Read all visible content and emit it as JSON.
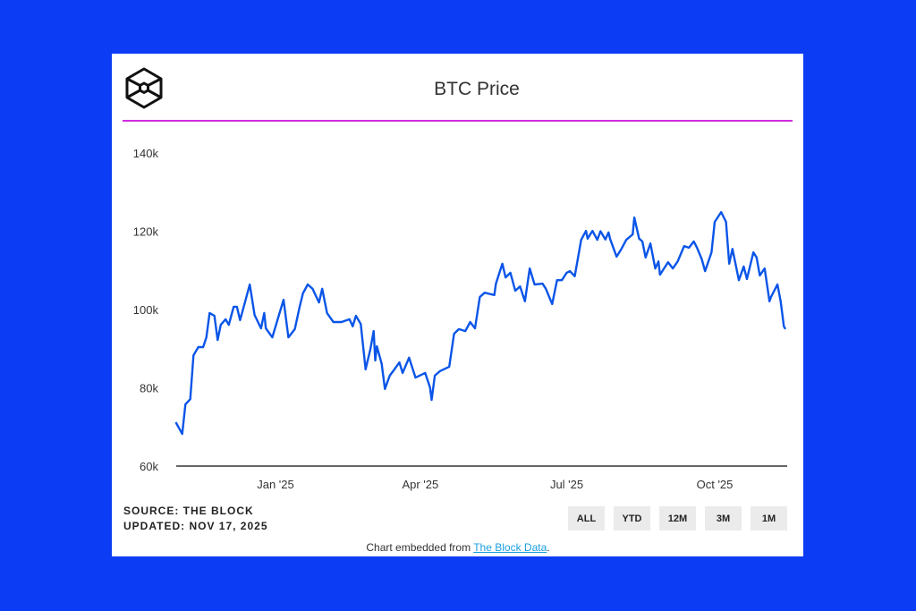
{
  "header": {
    "title": "BTC Price",
    "logo": "The Block"
  },
  "colors": {
    "background": "#0c3cf4",
    "line": "#0a55e8",
    "rule": "#d22be0",
    "button_bg": "#ebebeb",
    "link": "#1a9fe0"
  },
  "footer": {
    "source": "SOURCE: THE BLOCK",
    "updated": "UPDATED: NOV 17, 2025",
    "embed_prefix": "Chart embedded from ",
    "embed_link": "The Block Data",
    "embed_suffix": "."
  },
  "range_buttons": [
    {
      "label": "ALL"
    },
    {
      "label": "YTD"
    },
    {
      "label": "12M"
    },
    {
      "label": "3M"
    },
    {
      "label": "1M"
    }
  ],
  "chart_data": {
    "type": "line",
    "title": "BTC Price",
    "xlabel": "",
    "ylabel": "",
    "ylim": [
      60000,
      140000
    ],
    "yticks": [
      {
        "value": 60000,
        "label": "60k"
      },
      {
        "value": 80000,
        "label": "80k"
      },
      {
        "value": 100000,
        "label": "100k"
      },
      {
        "value": 120000,
        "label": "120k"
      },
      {
        "value": 140000,
        "label": "140k"
      }
    ],
    "xticks": [
      {
        "date": "2025-01-01",
        "label": "Jan '25"
      },
      {
        "date": "2025-04-01",
        "label": "Apr '25"
      },
      {
        "date": "2025-07-01",
        "label": "Jul '25"
      },
      {
        "date": "2025-10-01",
        "label": "Oct '25"
      }
    ],
    "grid": false,
    "series": [
      {
        "values": [
          [
            "2024-10-31",
            71200
          ],
          [
            "2024-11-04",
            68200
          ],
          [
            "2024-11-06",
            75800
          ],
          [
            "2024-11-09",
            77100
          ],
          [
            "2024-11-11",
            88300
          ],
          [
            "2024-11-14",
            90400
          ],
          [
            "2024-11-17",
            90400
          ],
          [
            "2024-11-19",
            92900
          ],
          [
            "2024-11-21",
            99100
          ],
          [
            "2024-11-24",
            98400
          ],
          [
            "2024-11-26",
            92200
          ],
          [
            "2024-11-28",
            96100
          ],
          [
            "2024-12-01",
            97500
          ],
          [
            "2024-12-03",
            96100
          ],
          [
            "2024-12-06",
            100700
          ],
          [
            "2024-12-08",
            100700
          ],
          [
            "2024-12-10",
            97300
          ],
          [
            "2024-12-13",
            101800
          ],
          [
            "2024-12-16",
            106400
          ],
          [
            "2024-12-19",
            98600
          ],
          [
            "2024-12-23",
            95200
          ],
          [
            "2024-12-25",
            99100
          ],
          [
            "2024-12-26",
            95200
          ],
          [
            "2024-12-30",
            92900
          ],
          [
            "2025-01-03",
            98400
          ],
          [
            "2025-01-06",
            102500
          ],
          [
            "2025-01-09",
            92900
          ],
          [
            "2025-01-13",
            95000
          ],
          [
            "2025-01-16",
            100700
          ],
          [
            "2025-01-18",
            104100
          ],
          [
            "2025-01-21",
            106400
          ],
          [
            "2025-01-24",
            105300
          ],
          [
            "2025-01-28",
            101800
          ],
          [
            "2025-01-30",
            105300
          ],
          [
            "2025-02-02",
            99100
          ],
          [
            "2025-02-06",
            96800
          ],
          [
            "2025-02-11",
            96800
          ],
          [
            "2025-02-16",
            97500
          ],
          [
            "2025-02-18",
            95700
          ],
          [
            "2025-02-20",
            98400
          ],
          [
            "2025-02-23",
            96300
          ],
          [
            "2025-02-26",
            84700
          ],
          [
            "2025-03-01",
            89900
          ],
          [
            "2025-03-03",
            94500
          ],
          [
            "2025-03-04",
            87000
          ],
          [
            "2025-03-05",
            90600
          ],
          [
            "2025-03-08",
            86100
          ],
          [
            "2025-03-10",
            79700
          ],
          [
            "2025-03-13",
            83100
          ],
          [
            "2025-03-15",
            84200
          ],
          [
            "2025-03-19",
            86500
          ],
          [
            "2025-03-21",
            83800
          ],
          [
            "2025-03-25",
            87700
          ],
          [
            "2025-03-29",
            82600
          ],
          [
            "2025-04-04",
            83800
          ],
          [
            "2025-04-07",
            80100
          ],
          [
            "2025-04-08",
            76900
          ],
          [
            "2025-04-10",
            83100
          ],
          [
            "2025-04-13",
            84200
          ],
          [
            "2025-04-19",
            85400
          ],
          [
            "2025-04-22",
            93800
          ],
          [
            "2025-04-25",
            95000
          ],
          [
            "2025-04-29",
            94500
          ],
          [
            "2025-05-02",
            96800
          ],
          [
            "2025-05-05",
            95200
          ],
          [
            "2025-05-08",
            103200
          ],
          [
            "2025-05-11",
            104300
          ],
          [
            "2025-05-17",
            103700
          ],
          [
            "2025-05-18",
            106600
          ],
          [
            "2025-05-22",
            111700
          ],
          [
            "2025-05-24",
            108200
          ],
          [
            "2025-05-27",
            109400
          ],
          [
            "2025-05-30",
            104800
          ],
          [
            "2025-06-02",
            105900
          ],
          [
            "2025-06-05",
            102100
          ],
          [
            "2025-06-08",
            110500
          ],
          [
            "2025-06-11",
            106400
          ],
          [
            "2025-06-16",
            106600
          ],
          [
            "2025-06-18",
            105300
          ],
          [
            "2025-06-22",
            101400
          ],
          [
            "2025-06-25",
            107500
          ],
          [
            "2025-06-28",
            107500
          ],
          [
            "2025-07-01",
            109400
          ],
          [
            "2025-07-03",
            109800
          ],
          [
            "2025-07-06",
            108500
          ],
          [
            "2025-07-10",
            117800
          ],
          [
            "2025-07-13",
            120100
          ],
          [
            "2025-07-14",
            118100
          ],
          [
            "2025-07-17",
            120100
          ],
          [
            "2025-07-20",
            117800
          ],
          [
            "2025-07-22",
            120000
          ],
          [
            "2025-07-25",
            117900
          ],
          [
            "2025-07-27",
            119700
          ],
          [
            "2025-07-28",
            118000
          ],
          [
            "2025-08-01",
            113500
          ],
          [
            "2025-08-04",
            115500
          ],
          [
            "2025-08-07",
            117800
          ],
          [
            "2025-08-11",
            119200
          ],
          [
            "2025-08-12",
            123500
          ],
          [
            "2025-08-15",
            118100
          ],
          [
            "2025-08-17",
            117400
          ],
          [
            "2025-08-19",
            113300
          ],
          [
            "2025-08-22",
            116900
          ],
          [
            "2025-08-25",
            110500
          ],
          [
            "2025-08-27",
            112300
          ],
          [
            "2025-08-28",
            108900
          ],
          [
            "2025-09-02",
            112100
          ],
          [
            "2025-09-05",
            110500
          ],
          [
            "2025-09-08",
            112300
          ],
          [
            "2025-09-12",
            116200
          ],
          [
            "2025-09-15",
            115800
          ],
          [
            "2025-09-18",
            117400
          ],
          [
            "2025-09-20",
            115800
          ],
          [
            "2025-09-23",
            112800
          ],
          [
            "2025-09-25",
            109800
          ],
          [
            "2025-09-29",
            114600
          ],
          [
            "2025-10-01",
            122400
          ],
          [
            "2025-10-05",
            124900
          ],
          [
            "2025-10-08",
            122400
          ],
          [
            "2025-10-10",
            111700
          ],
          [
            "2025-10-12",
            115500
          ],
          [
            "2025-10-16",
            107500
          ],
          [
            "2025-10-19",
            111000
          ],
          [
            "2025-10-21",
            107800
          ],
          [
            "2025-10-25",
            114600
          ],
          [
            "2025-10-27",
            113300
          ],
          [
            "2025-10-29",
            108700
          ],
          [
            "2025-11-01",
            110500
          ],
          [
            "2025-11-04",
            102100
          ],
          [
            "2025-11-05",
            103200
          ],
          [
            "2025-11-09",
            106400
          ],
          [
            "2025-11-11",
            102100
          ],
          [
            "2025-11-13",
            95700
          ],
          [
            "2025-11-14",
            95000
          ]
        ]
      }
    ]
  }
}
